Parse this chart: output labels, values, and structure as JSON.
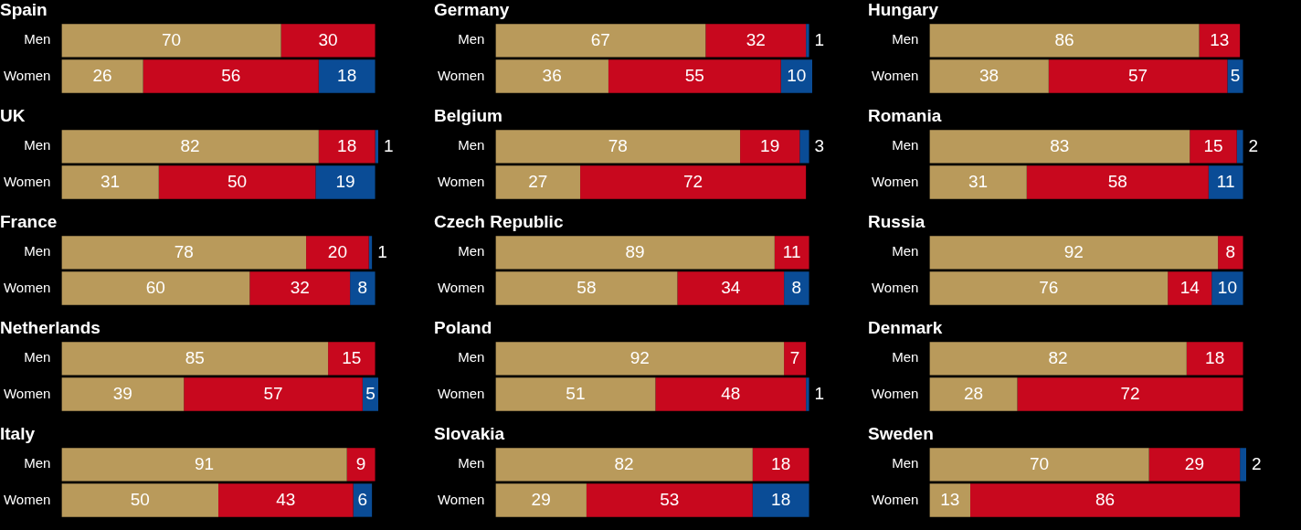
{
  "chart_data": [
    {
      "type": "bar",
      "title": "Spain",
      "orientation": "horizontal",
      "stacked": true,
      "categories": [
        "Men",
        "Women"
      ],
      "xlim": [
        0,
        101
      ],
      "tick_labels": "y",
      "grid": false,
      "legend": false,
      "data_labels": true,
      "series": [
        {
          "color": "#b99a5b",
          "values": [
            70,
            26
          ]
        },
        {
          "color": "#c8081e",
          "values": [
            30,
            56
          ]
        },
        {
          "color": "#0a4c96",
          "values": [
            null,
            18
          ]
        }
      ]
    },
    {
      "type": "bar",
      "title": "Germany",
      "orientation": "horizontal",
      "stacked": true,
      "categories": [
        "Men",
        "Women"
      ],
      "xlim": [
        0,
        101
      ],
      "tick_labels": "y",
      "grid": false,
      "legend": false,
      "data_labels": true,
      "series": [
        {
          "color": "#b99a5b",
          "values": [
            67,
            36
          ]
        },
        {
          "color": "#c8081e",
          "values": [
            32,
            55
          ]
        },
        {
          "color": "#0a4c96",
          "values": [
            1,
            10
          ]
        }
      ]
    },
    {
      "type": "bar",
      "title": "Hungary",
      "orientation": "horizontal",
      "stacked": true,
      "categories": [
        "Men",
        "Women"
      ],
      "xlim": [
        0,
        101
      ],
      "tick_labels": "y",
      "grid": false,
      "legend": false,
      "data_labels": true,
      "series": [
        {
          "color": "#b99a5b",
          "values": [
            86,
            38
          ]
        },
        {
          "color": "#c8081e",
          "values": [
            13,
            57
          ]
        },
        {
          "color": "#0a4c96",
          "values": [
            null,
            5
          ]
        }
      ]
    },
    {
      "type": "bar",
      "title": "UK",
      "orientation": "horizontal",
      "stacked": true,
      "categories": [
        "Men",
        "Women"
      ],
      "xlim": [
        0,
        101
      ],
      "tick_labels": "y",
      "grid": false,
      "legend": false,
      "data_labels": true,
      "series": [
        {
          "color": "#b99a5b",
          "values": [
            82,
            31
          ]
        },
        {
          "color": "#c8081e",
          "values": [
            18,
            50
          ]
        },
        {
          "color": "#0a4c96",
          "values": [
            1,
            19
          ]
        }
      ]
    },
    {
      "type": "bar",
      "title": "Belgium",
      "orientation": "horizontal",
      "stacked": true,
      "categories": [
        "Men",
        "Women"
      ],
      "xlim": [
        0,
        101
      ],
      "tick_labels": "y",
      "grid": false,
      "legend": false,
      "data_labels": true,
      "series": [
        {
          "color": "#b99a5b",
          "values": [
            78,
            27
          ]
        },
        {
          "color": "#c8081e",
          "values": [
            19,
            72
          ]
        },
        {
          "color": "#0a4c96",
          "values": [
            3,
            null
          ]
        }
      ]
    },
    {
      "type": "bar",
      "title": "Romania",
      "orientation": "horizontal",
      "stacked": true,
      "categories": [
        "Men",
        "Women"
      ],
      "xlim": [
        0,
        101
      ],
      "tick_labels": "y",
      "grid": false,
      "legend": false,
      "data_labels": true,
      "series": [
        {
          "color": "#b99a5b",
          "values": [
            83,
            31
          ]
        },
        {
          "color": "#c8081e",
          "values": [
            15,
            58
          ]
        },
        {
          "color": "#0a4c96",
          "values": [
            2,
            11
          ]
        }
      ]
    },
    {
      "type": "bar",
      "title": "France",
      "orientation": "horizontal",
      "stacked": true,
      "categories": [
        "Men",
        "Women"
      ],
      "xlim": [
        0,
        101
      ],
      "tick_labels": "y",
      "grid": false,
      "legend": false,
      "data_labels": true,
      "series": [
        {
          "color": "#b99a5b",
          "values": [
            78,
            60
          ]
        },
        {
          "color": "#c8081e",
          "values": [
            20,
            32
          ]
        },
        {
          "color": "#0a4c96",
          "values": [
            1,
            8
          ]
        }
      ]
    },
    {
      "type": "bar",
      "title": "Czech Republic",
      "orientation": "horizontal",
      "stacked": true,
      "categories": [
        "Men",
        "Women"
      ],
      "xlim": [
        0,
        101
      ],
      "tick_labels": "y",
      "grid": false,
      "legend": false,
      "data_labels": true,
      "series": [
        {
          "color": "#b99a5b",
          "values": [
            89,
            58
          ]
        },
        {
          "color": "#c8081e",
          "values": [
            11,
            34
          ]
        },
        {
          "color": "#0a4c96",
          "values": [
            null,
            8
          ]
        }
      ]
    },
    {
      "type": "bar",
      "title": "Russia",
      "orientation": "horizontal",
      "stacked": true,
      "categories": [
        "Men",
        "Women"
      ],
      "xlim": [
        0,
        101
      ],
      "tick_labels": "y",
      "grid": false,
      "legend": false,
      "data_labels": true,
      "series": [
        {
          "color": "#b99a5b",
          "values": [
            92,
            76
          ]
        },
        {
          "color": "#c8081e",
          "values": [
            8,
            14
          ]
        },
        {
          "color": "#0a4c96",
          "values": [
            null,
            10
          ]
        }
      ]
    },
    {
      "type": "bar",
      "title": "Netherlands",
      "orientation": "horizontal",
      "stacked": true,
      "categories": [
        "Men",
        "Women"
      ],
      "xlim": [
        0,
        101
      ],
      "tick_labels": "y",
      "grid": false,
      "legend": false,
      "data_labels": true,
      "series": [
        {
          "color": "#b99a5b",
          "values": [
            85,
            39
          ]
        },
        {
          "color": "#c8081e",
          "values": [
            15,
            57
          ]
        },
        {
          "color": "#0a4c96",
          "values": [
            null,
            5
          ]
        }
      ]
    },
    {
      "type": "bar",
      "title": "Poland",
      "orientation": "horizontal",
      "stacked": true,
      "categories": [
        "Men",
        "Women"
      ],
      "xlim": [
        0,
        101
      ],
      "tick_labels": "y",
      "grid": false,
      "legend": false,
      "data_labels": true,
      "series": [
        {
          "color": "#b99a5b",
          "values": [
            92,
            51
          ]
        },
        {
          "color": "#c8081e",
          "values": [
            7,
            48
          ]
        },
        {
          "color": "#0a4c96",
          "values": [
            null,
            1
          ]
        }
      ]
    },
    {
      "type": "bar",
      "title": "Denmark",
      "orientation": "horizontal",
      "stacked": true,
      "categories": [
        "Men",
        "Women"
      ],
      "xlim": [
        0,
        101
      ],
      "tick_labels": "y",
      "grid": false,
      "legend": false,
      "data_labels": true,
      "series": [
        {
          "color": "#b99a5b",
          "values": [
            82,
            28
          ]
        },
        {
          "color": "#c8081e",
          "values": [
            18,
            72
          ]
        },
        {
          "color": "#0a4c96",
          "values": [
            null,
            null
          ]
        }
      ]
    },
    {
      "type": "bar",
      "title": "Italy",
      "orientation": "horizontal",
      "stacked": true,
      "categories": [
        "Men",
        "Women"
      ],
      "xlim": [
        0,
        101
      ],
      "tick_labels": "y",
      "grid": false,
      "legend": false,
      "data_labels": true,
      "series": [
        {
          "color": "#b99a5b",
          "values": [
            91,
            50
          ]
        },
        {
          "color": "#c8081e",
          "values": [
            9,
            43
          ]
        },
        {
          "color": "#0a4c96",
          "values": [
            null,
            6
          ]
        }
      ]
    },
    {
      "type": "bar",
      "title": "Slovakia",
      "orientation": "horizontal",
      "stacked": true,
      "categories": [
        "Men",
        "Women"
      ],
      "xlim": [
        0,
        101
      ],
      "tick_labels": "y",
      "grid": false,
      "legend": false,
      "data_labels": true,
      "series": [
        {
          "color": "#b99a5b",
          "values": [
            82,
            29
          ]
        },
        {
          "color": "#c8081e",
          "values": [
            18,
            53
          ]
        },
        {
          "color": "#0a4c96",
          "values": [
            null,
            18
          ]
        }
      ]
    },
    {
      "type": "bar",
      "title": "Sweden",
      "orientation": "horizontal",
      "stacked": true,
      "categories": [
        "Men",
        "Women"
      ],
      "xlim": [
        0,
        101
      ],
      "tick_labels": "y",
      "grid": false,
      "legend": false,
      "data_labels": true,
      "series": [
        {
          "color": "#b99a5b",
          "values": [
            70,
            13
          ]
        },
        {
          "color": "#c8081e",
          "values": [
            29,
            86
          ]
        },
        {
          "color": "#0a4c96",
          "values": [
            2,
            null
          ]
        }
      ]
    }
  ]
}
